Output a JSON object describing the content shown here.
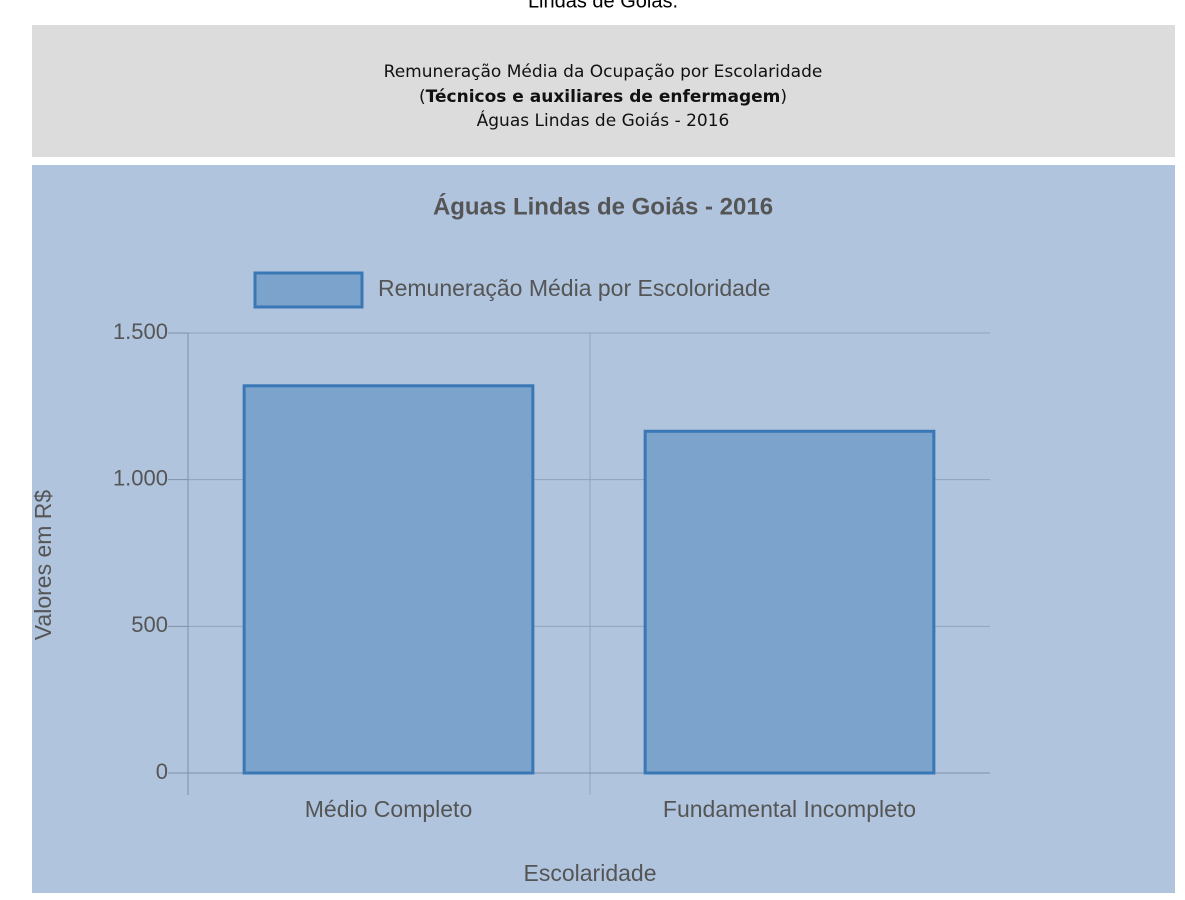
{
  "page": {
    "caption": "Lindas de Goiás.",
    "header": {
      "line1": "Remuneração Média da Ocupação por Escolaridade",
      "open": "(",
      "occupation": "Técnicos e auxiliares de enfermagem",
      "close": ")",
      "line3": "Águas Lindas de Goiás - 2016"
    }
  },
  "chart_data": {
    "type": "bar",
    "title": "Águas Lindas de Goiás - 2016",
    "categories": [
      "Médio Completo",
      "Fundamental Incompleto"
    ],
    "series": [
      {
        "name": "Remuneração Média por Escoloridade",
        "color": "#7ba3cc",
        "values": [
          1320,
          1165
        ]
      }
    ],
    "x_label": "Escolaridade",
    "y_label": "Valores em R$",
    "ylim": [
      0,
      1500
    ],
    "yticks": [
      0,
      500,
      {
        "value": 1000,
        "label": "1.000"
      },
      {
        "value": 1500,
        "label": "1.500"
      }
    ],
    "grid": true,
    "legend": "top"
  }
}
